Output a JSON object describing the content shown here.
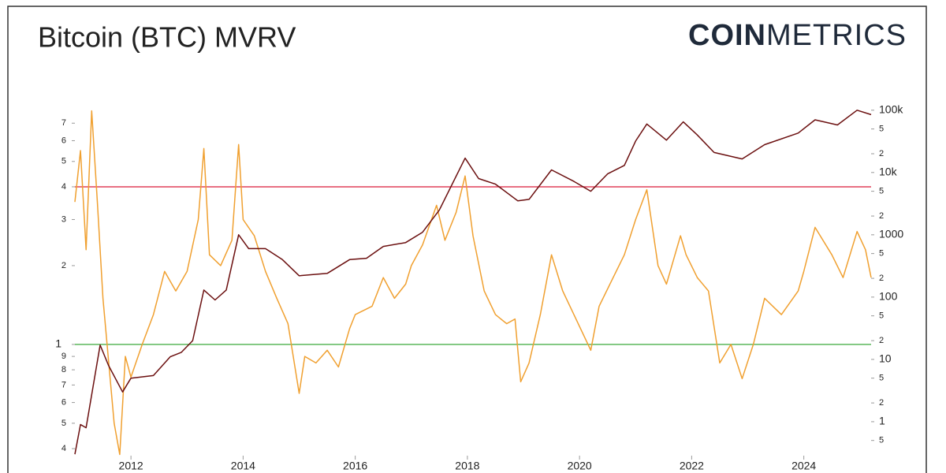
{
  "chart_data": {
    "type": "line",
    "title": "Bitcoin (BTC) MVRV",
    "brand": {
      "bold": "COIN",
      "light": "METRICS"
    },
    "log_scale": true,
    "grid": false,
    "xlim": [
      2011.0,
      2025.2
    ],
    "xticks": [
      2012,
      2014,
      2016,
      2018,
      2020,
      2022,
      2024
    ],
    "ylim": [
      0.376,
      9.0
    ],
    "yticks": [
      {
        "value": 0.4,
        "label": "4"
      },
      {
        "value": 0.5,
        "label": "5"
      },
      {
        "value": 0.6,
        "label": "6"
      },
      {
        "value": 0.7,
        "label": "7"
      },
      {
        "value": 0.8,
        "label": "8"
      },
      {
        "value": 0.9,
        "label": "9"
      },
      1,
      2,
      3,
      4,
      5,
      6,
      7
    ],
    "y2lim": [
      0.285,
      178000
    ],
    "y2ticks": [
      {
        "value": 0.5,
        "label": "5"
      },
      1,
      2,
      5,
      10,
      {
        "value": 20,
        "label": "2"
      },
      {
        "value": 50,
        "label": "5"
      },
      100,
      {
        "value": 200,
        "label": "2"
      },
      {
        "value": 500,
        "label": "5"
      },
      1000,
      {
        "value": 2000,
        "label": "2"
      },
      {
        "value": 5000,
        "label": "5"
      },
      {
        "value": 10000,
        "label": "10k"
      },
      {
        "value": 20000,
        "label": "2"
      },
      {
        "value": 50000,
        "label": "5"
      },
      {
        "value": 100000,
        "label": "100k"
      }
    ],
    "ref_lines": [
      {
        "value": 4,
        "color": "#e0405a"
      },
      {
        "value": 1,
        "color": "#5cb85c"
      }
    ],
    "series": [
      {
        "color": "#f0a030",
        "x": [
          2011.0,
          2011.1,
          2011.2,
          2011.3,
          2011.4,
          2011.5,
          2011.7,
          2011.8,
          2011.9,
          2012.0,
          2012.2,
          2012.4,
          2012.6,
          2012.8,
          2013.0,
          2013.2,
          2013.3,
          2013.4,
          2013.6,
          2013.8,
          2013.92,
          2014.0,
          2014.2,
          2014.4,
          2014.6,
          2014.8,
          2015.0,
          2015.1,
          2015.3,
          2015.5,
          2015.7,
          2015.9,
          2016.0,
          2016.3,
          2016.5,
          2016.7,
          2016.9,
          2017.0,
          2017.2,
          2017.45,
          2017.6,
          2017.8,
          2017.96,
          2018.1,
          2018.3,
          2018.5,
          2018.7,
          2018.85,
          2018.95,
          2019.1,
          2019.3,
          2019.5,
          2019.7,
          2019.9,
          2020.2,
          2020.35,
          2020.6,
          2020.8,
          2021.0,
          2021.2,
          2021.4,
          2021.55,
          2021.8,
          2021.9,
          2022.1,
          2022.3,
          2022.5,
          2022.7,
          2022.9,
          2023.1,
          2023.3,
          2023.6,
          2023.9,
          2024.0,
          2024.2,
          2024.5,
          2024.7,
          2024.95,
          2025.1,
          2025.2
        ],
        "values": [
          3.5,
          5.5,
          2.3,
          7.8,
          3.5,
          1.5,
          0.5,
          0.38,
          0.9,
          0.75,
          1.0,
          1.3,
          1.9,
          1.6,
          1.9,
          3.0,
          5.6,
          2.2,
          2.0,
          2.5,
          5.8,
          3.0,
          2.6,
          1.9,
          1.5,
          1.2,
          0.65,
          0.9,
          0.85,
          0.95,
          0.82,
          1.15,
          1.3,
          1.4,
          1.8,
          1.5,
          1.7,
          2.0,
          2.4,
          3.4,
          2.5,
          3.2,
          4.4,
          2.6,
          1.6,
          1.3,
          1.2,
          1.25,
          0.72,
          0.85,
          1.3,
          2.2,
          1.6,
          1.3,
          0.95,
          1.4,
          1.8,
          2.2,
          3.0,
          3.9,
          2.0,
          1.7,
          2.6,
          2.2,
          1.8,
          1.6,
          0.85,
          1.0,
          0.74,
          1.0,
          1.5,
          1.3,
          1.6,
          1.9,
          2.8,
          2.2,
          1.8,
          2.7,
          2.3,
          1.8
        ]
      },
      {
        "color": "#6b0f0f",
        "axis": "y2",
        "x": [
          2011.0,
          2011.1,
          2011.2,
          2011.45,
          2011.6,
          2011.85,
          2012.0,
          2012.4,
          2012.7,
          2012.9,
          2013.1,
          2013.3,
          2013.5,
          2013.7,
          2013.92,
          2014.1,
          2014.4,
          2014.7,
          2015.0,
          2015.5,
          2015.9,
          2016.2,
          2016.5,
          2016.9,
          2017.2,
          2017.5,
          2017.96,
          2018.2,
          2018.5,
          2018.9,
          2019.1,
          2019.5,
          2019.9,
          2020.2,
          2020.5,
          2020.8,
          2021.0,
          2021.2,
          2021.55,
          2021.85,
          2022.1,
          2022.4,
          2022.9,
          2023.3,
          2023.9,
          2024.2,
          2024.6,
          2024.95,
          2025.2
        ],
        "values": [
          0.3,
          0.9,
          0.8,
          17,
          8,
          3,
          5,
          5.5,
          11,
          13,
          20,
          130,
          90,
          130,
          1000,
          600,
          600,
          400,
          220,
          240,
          400,
          420,
          650,
          750,
          1100,
          2500,
          17000,
          8000,
          6500,
          3500,
          3700,
          11000,
          7200,
          5000,
          9500,
          13000,
          32000,
          60000,
          33000,
          65000,
          40000,
          21000,
          16500,
          28000,
          43000,
          70000,
          58000,
          100000,
          85000
        ]
      }
    ]
  }
}
